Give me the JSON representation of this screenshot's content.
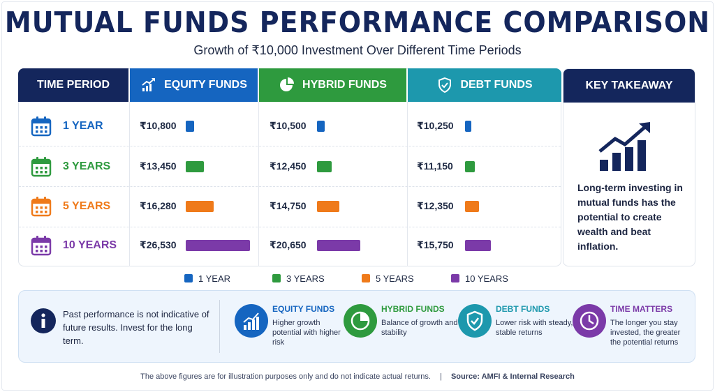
{
  "title": "MUTUAL FUNDS PERFORMANCE COMPARISON",
  "subtitle": "Growth of ₹10,000 Investment Over Different Time Periods",
  "colors": {
    "navy": "#14265c",
    "equity": "#1565c0",
    "hybrid": "#2e9a3e",
    "debt": "#1d98ad",
    "y1": "#1565c0",
    "y3": "#2e9a3e",
    "y5": "#ef7a1a",
    "y10": "#7b3aa8"
  },
  "headers": {
    "period": "TIME PERIOD",
    "equity": "EQUITY FUNDS",
    "hybrid": "HYBRID FUNDS",
    "debt": "DEBT FUNDS",
    "key": "KEY TAKEAWAY"
  },
  "rows": [
    {
      "period": "1 YEAR",
      "color": "#1565c0",
      "equity": "₹10,800",
      "hybrid": "₹10,500",
      "debt": "₹10,250"
    },
    {
      "period": "3 YEARS",
      "color": "#2e9a3e",
      "equity": "₹13,450",
      "hybrid": "₹12,450",
      "debt": "₹11,150"
    },
    {
      "period": "5 YEARS",
      "color": "#ef7a1a",
      "equity": "₹16,280",
      "hybrid": "₹14,750",
      "debt": "₹12,350"
    },
    {
      "period": "10 YEARS",
      "color": "#7b3aa8",
      "equity": "₹26,530",
      "hybrid": "₹20,650",
      "debt": "₹15,750"
    }
  ],
  "chart_data": {
    "type": "bar",
    "categories": [
      "EQUITY FUNDS",
      "HYBRID FUNDS",
      "DEBT FUNDS"
    ],
    "series": [
      {
        "name": "1 YEAR",
        "values": [
          10800,
          10500,
          10250
        ]
      },
      {
        "name": "3 YEARS",
        "values": [
          13450,
          12450,
          11150
        ]
      },
      {
        "name": "5 YEARS",
        "values": [
          16280,
          14750,
          12350
        ]
      },
      {
        "name": "10 YEARS",
        "values": [
          26530,
          20650,
          15750
        ]
      }
    ],
    "title": "MUTUAL FUNDS PERFORMANCE COMPARISON",
    "subtitle": "Growth of ₹10,000 Investment Over Different Time Periods",
    "legend": "bottom"
  },
  "key_takeaway": "Long-term investing in mutual funds has the potential to create wealth and beat inflation.",
  "legend": [
    "1 YEAR",
    "3 YEARS",
    "5 YEARS",
    "10 YEARS"
  ],
  "disclaimer": "Past performance is not indicative of future results. Invest for the long term.",
  "info": [
    {
      "title": "EQUITY FUNDS",
      "color": "#1565c0",
      "text": "Higher growth potential with higher risk"
    },
    {
      "title": "HYBRID FUNDS",
      "color": "#2e9a3e",
      "text": "Balance of growth and stability"
    },
    {
      "title": "DEBT FUNDS",
      "color": "#1d98ad",
      "text": "Lower risk with steady, stable returns"
    },
    {
      "title": "TIME MATTERS",
      "color": "#7b3aa8",
      "text": "The longer you stay invested, the greater the potential returns"
    }
  ],
  "footer": {
    "note": "The above figures are for illustration purposes only and do not indicate actual returns.",
    "source": "Source: AMFI & Internal Research"
  }
}
